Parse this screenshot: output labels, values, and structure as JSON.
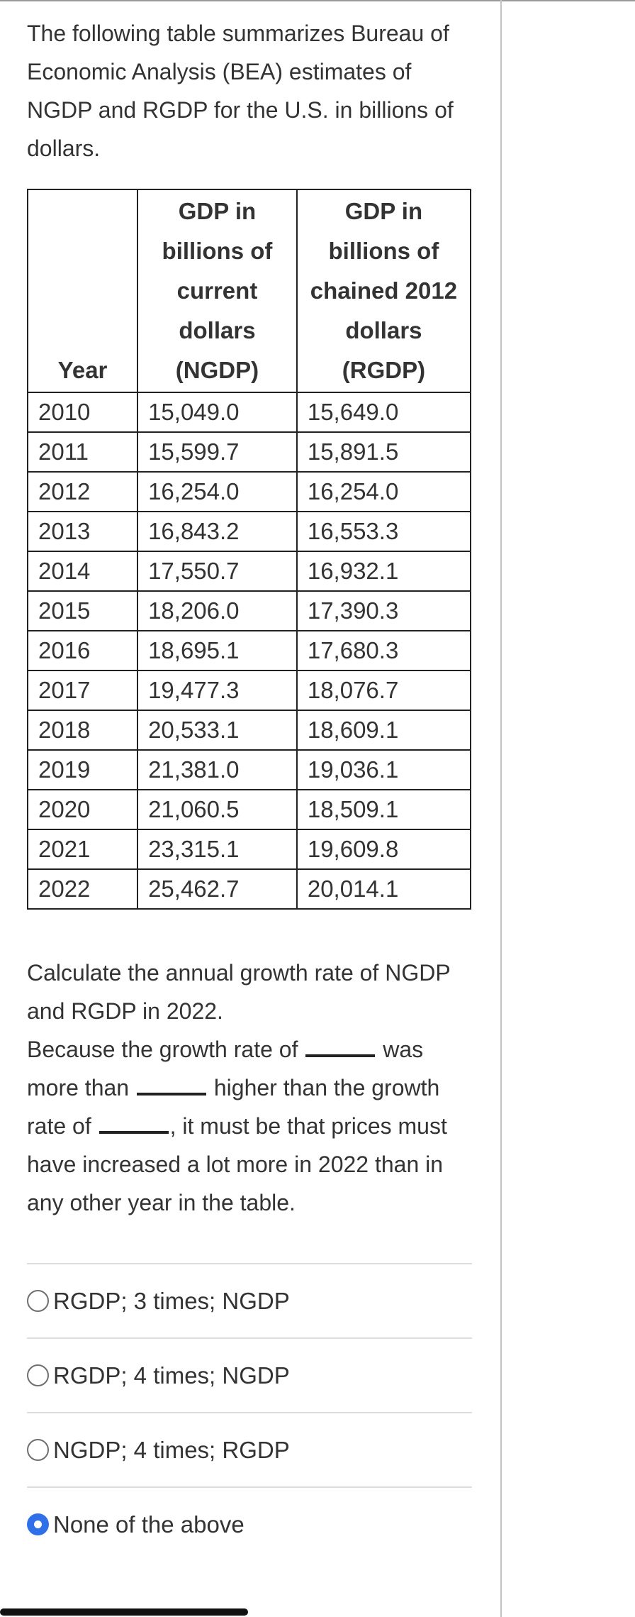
{
  "intro": "The following table summarizes Bureau of Economic Analysis (BEA) estimates of NGDP and RGDP for the U.S. in billions of dollars.",
  "table": {
    "headers": {
      "year": "Year",
      "ngdp": "GDP in billions of current dollars (NGDP)",
      "rgdp": "GDP in billions of chained 2012 dollars (RGDP)"
    },
    "rows": [
      {
        "year": "2010",
        "ngdp": "15,049.0",
        "rgdp": "15,649.0"
      },
      {
        "year": "2011",
        "ngdp": "15,599.7",
        "rgdp": "15,891.5"
      },
      {
        "year": "2012",
        "ngdp": "16,254.0",
        "rgdp": "16,254.0"
      },
      {
        "year": "2013",
        "ngdp": "16,843.2",
        "rgdp": "16,553.3"
      },
      {
        "year": "2014",
        "ngdp": "17,550.7",
        "rgdp": "16,932.1"
      },
      {
        "year": "2015",
        "ngdp": "18,206.0",
        "rgdp": "17,390.3"
      },
      {
        "year": "2016",
        "ngdp": "18,695.1",
        "rgdp": "17,680.3"
      },
      {
        "year": "2017",
        "ngdp": "19,477.3",
        "rgdp": "18,076.7"
      },
      {
        "year": "2018",
        "ngdp": "20,533.1",
        "rgdp": "18,609.1"
      },
      {
        "year": "2019",
        "ngdp": "21,381.0",
        "rgdp": "19,036.1"
      },
      {
        "year": "2020",
        "ngdp": "21,060.5",
        "rgdp": "18,509.1"
      },
      {
        "year": "2021",
        "ngdp": "23,315.1",
        "rgdp": "19,609.8"
      },
      {
        "year": "2022",
        "ngdp": "25,462.7",
        "rgdp": "20,014.1"
      }
    ]
  },
  "question": "Calculate the annual growth rate of NGDP and RGDP in 2022.",
  "statement": {
    "part1": "Because the growth rate of",
    "part2": "was more than",
    "part3": "higher than the growth rate of",
    "part4": ", it must be that prices must have increased a lot more in 2022 than in any other year in the table."
  },
  "options": [
    {
      "label": "RGDP; 3 times; NGDP",
      "selected": false
    },
    {
      "label": "RGDP; 4 times; NGDP",
      "selected": false
    },
    {
      "label": "NGDP; 4 times; RGDP",
      "selected": false
    },
    {
      "label": "None of the above",
      "selected": true
    }
  ],
  "colors": {
    "selected_radio": "#2f6fe8",
    "text": "#333333",
    "table_border": "#222222"
  }
}
